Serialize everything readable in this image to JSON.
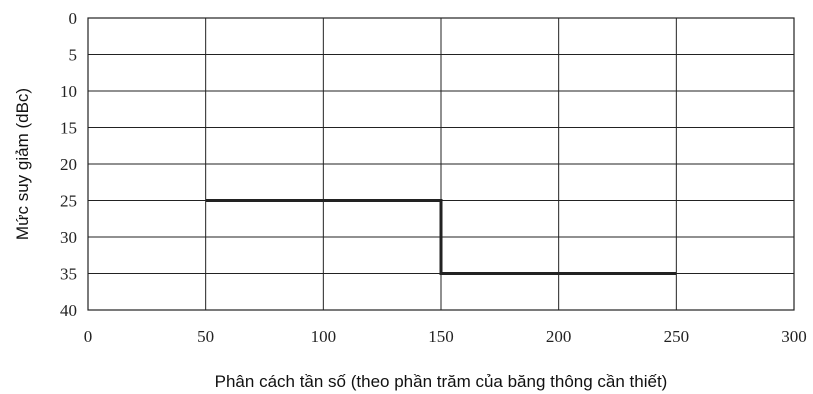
{
  "chart_data": {
    "type": "line",
    "title": "",
    "xlabel": "Phân cách tần số (theo phần trăm của băng thông cần thiết)",
    "ylabel": "Mức suy giảm (dBc)",
    "xlim": [
      0,
      300
    ],
    "ylim": [
      0,
      40
    ],
    "y_inverted": true,
    "grid": true,
    "x_ticks": [
      "0",
      "50",
      "100",
      "150",
      "200",
      "250",
      "300"
    ],
    "y_ticks": [
      "0",
      "5",
      "10",
      "15",
      "20",
      "25",
      "30",
      "35",
      "40"
    ],
    "series": [
      {
        "x": [
          50,
          150,
          150,
          250
        ],
        "y": [
          25,
          25,
          35,
          35
        ]
      }
    ]
  }
}
